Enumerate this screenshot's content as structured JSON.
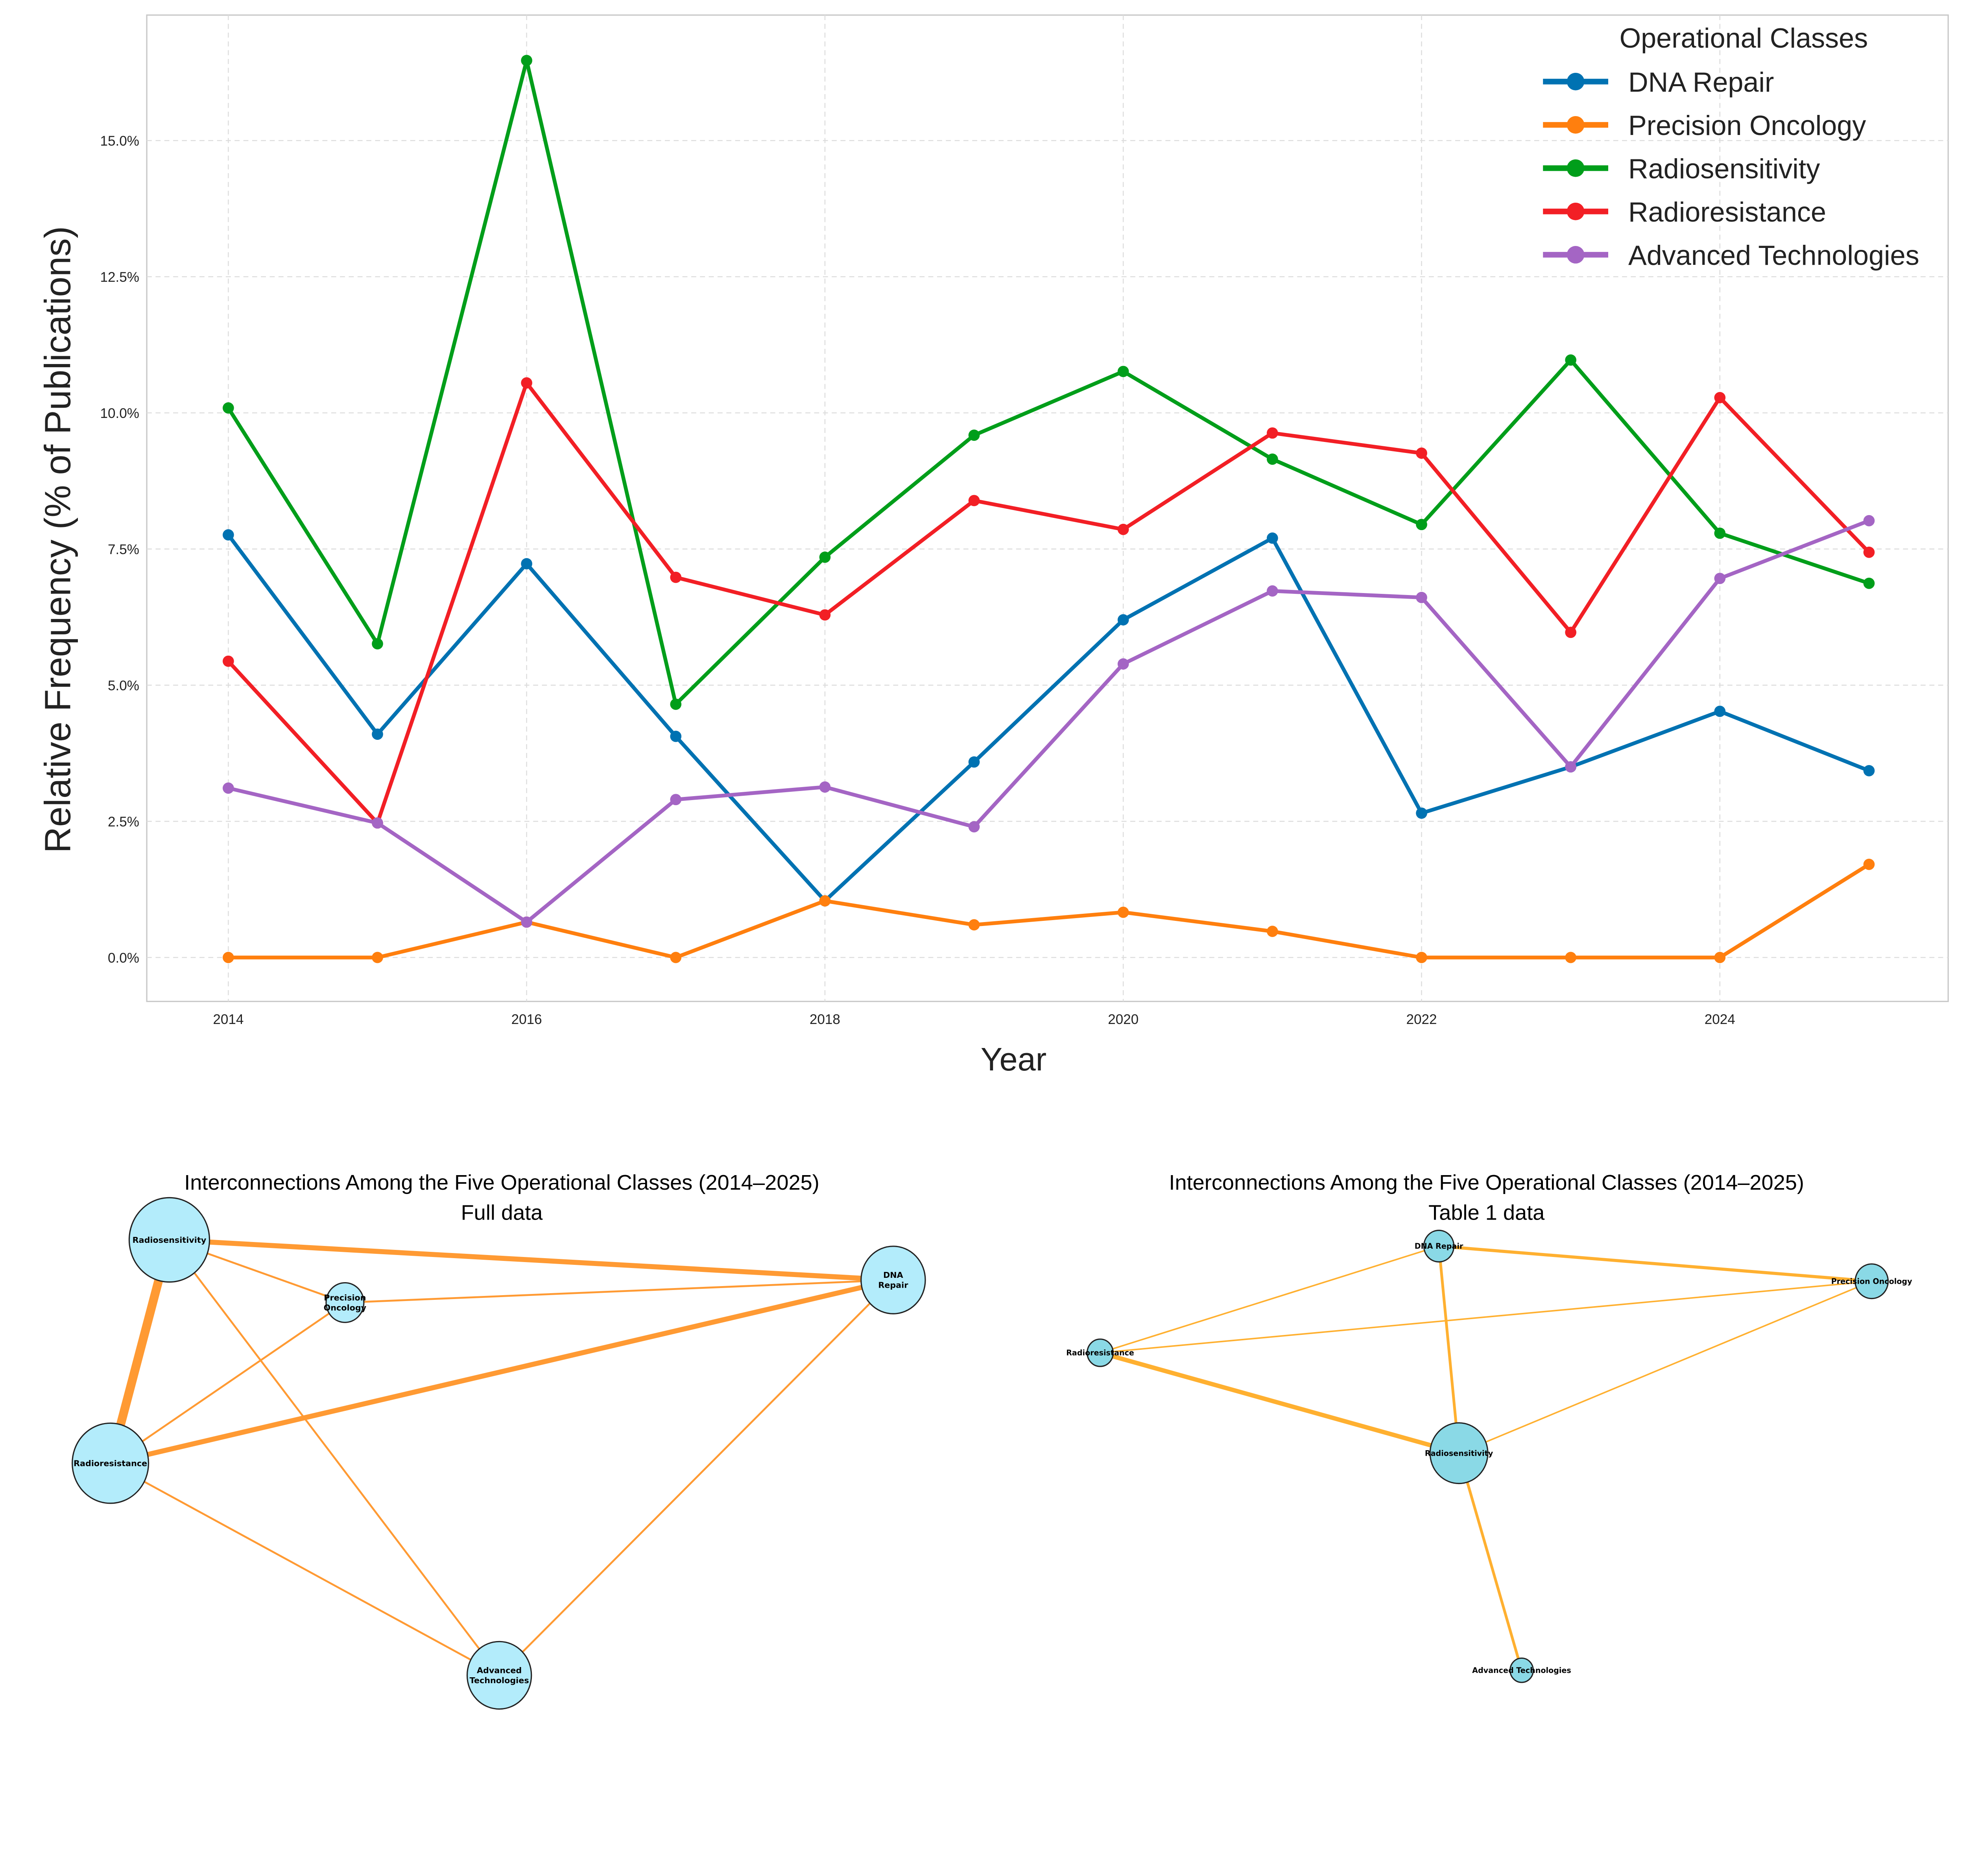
{
  "chart_data": [
    {
      "type": "line",
      "title": "",
      "xlabel": "Year",
      "ylabel": "Relative Frequency (% of Publications)",
      "x": [
        2014,
        2015,
        2016,
        2017,
        2018,
        2019,
        2020,
        2021,
        2022,
        2023,
        2024,
        2025
      ],
      "x_ticks": [
        "2014",
        "2016",
        "2018",
        "2020",
        "2022",
        "2024"
      ],
      "y_ticks": [
        "0.0%",
        "2.5%",
        "5.0%",
        "7.5%",
        "10.0%",
        "12.5%",
        "15.0%"
      ],
      "ylim": [
        -0.8,
        17.3
      ],
      "xlim": [
        2013.45,
        2025.55
      ],
      "grid": true,
      "legend_title": "Operational Classes",
      "legend_position": "top-right",
      "series": [
        {
          "name": "DNA Repair",
          "color": "#0072b2",
          "values": [
            7.76,
            4.1,
            7.23,
            4.06,
            1.04,
            3.59,
            6.2,
            7.7,
            2.65,
            3.5,
            4.52,
            3.43
          ]
        },
        {
          "name": "Precision Oncology",
          "color": "#ff7f0e",
          "values": [
            0,
            0,
            0.65,
            0,
            1.04,
            0.6,
            0.83,
            0.48,
            0,
            0,
            0,
            1.71
          ]
        },
        {
          "name": "Radiosensitivity",
          "color": "#009e1a",
          "values": [
            10.09,
            5.76,
            16.47,
            4.65,
            7.35,
            9.59,
            10.76,
            9.15,
            7.95,
            10.97,
            7.79,
            6.87
          ]
        },
        {
          "name": "Radioresistance",
          "color": "#f21f25",
          "values": [
            5.44,
            2.47,
            10.55,
            6.98,
            6.29,
            8.39,
            7.86,
            9.63,
            9.26,
            5.97,
            10.28,
            7.44
          ]
        },
        {
          "name": "Advanced Technologies",
          "color": "#a465c4",
          "values": [
            3.11,
            2.47,
            0.65,
            2.9,
            3.13,
            2.4,
            5.39,
            6.73,
            6.61,
            3.5,
            6.96,
            8.02
          ]
        }
      ]
    },
    {
      "type": "network",
      "title": "Interconnections Among the Five Operational Classes (2014–2025)",
      "subtitle": "Full data",
      "node_color": "#b3ecfb",
      "edge_color": "#ff9a33",
      "nodes": [
        {
          "id": "RS",
          "label": [
            "Radiosensitivity"
          ],
          "size": 1.0
        },
        {
          "id": "PO",
          "label": [
            "Precision",
            "Oncology"
          ],
          "size": 0.47
        },
        {
          "id": "DR",
          "label": [
            "DNA",
            "Repair"
          ],
          "size": 0.8
        },
        {
          "id": "RR",
          "label": [
            "Radioresistance"
          ],
          "size": 0.95
        },
        {
          "id": "AT",
          "label": [
            "Advanced",
            "Technologies"
          ],
          "size": 0.8
        }
      ],
      "edges": [
        {
          "source": "RS",
          "target": "DR",
          "weight": 4
        },
        {
          "source": "RS",
          "target": "RR",
          "weight": 7
        },
        {
          "source": "RR",
          "target": "DR",
          "weight": 4
        },
        {
          "source": "RS",
          "target": "PO",
          "weight": 1.5
        },
        {
          "source": "RS",
          "target": "AT",
          "weight": 1.5
        },
        {
          "source": "PO",
          "target": "DR",
          "weight": 1.5
        },
        {
          "source": "PO",
          "target": "RR",
          "weight": 1.5
        },
        {
          "source": "RR",
          "target": "AT",
          "weight": 1.5
        },
        {
          "source": "DR",
          "target": "AT",
          "weight": 1.5
        }
      ]
    },
    {
      "type": "network",
      "title": "Interconnections Among the Five Operational Classes (2014–2025)",
      "subtitle": "Table 1 data",
      "node_color": "#8ad9e6",
      "edge_color": "#ffb030",
      "nodes": [
        {
          "id": "DR",
          "label": [
            "DNA Repair"
          ],
          "size": 0.52
        },
        {
          "id": "PO",
          "label": [
            "Precision Oncology"
          ],
          "size": 0.57
        },
        {
          "id": "RR",
          "label": [
            "Radioresistance"
          ],
          "size": 0.45
        },
        {
          "id": "RS",
          "label": [
            "Radiosensitivity"
          ],
          "size": 1.0
        },
        {
          "id": "AT",
          "label": [
            "Advanced Technologies"
          ],
          "size": 0.4
        }
      ],
      "edges": [
        {
          "source": "DR",
          "target": "PO",
          "weight": 2.5
        },
        {
          "source": "DR",
          "target": "RR",
          "weight": 1.2
        },
        {
          "source": "DR",
          "target": "RS",
          "weight": 2.2
        },
        {
          "source": "RR",
          "target": "PO",
          "weight": 1.2
        },
        {
          "source": "RR",
          "target": "RS",
          "weight": 3.5
        },
        {
          "source": "PO",
          "target": "RS",
          "weight": 1.2
        },
        {
          "source": "RS",
          "target": "AT",
          "weight": 2.2
        }
      ]
    }
  ]
}
